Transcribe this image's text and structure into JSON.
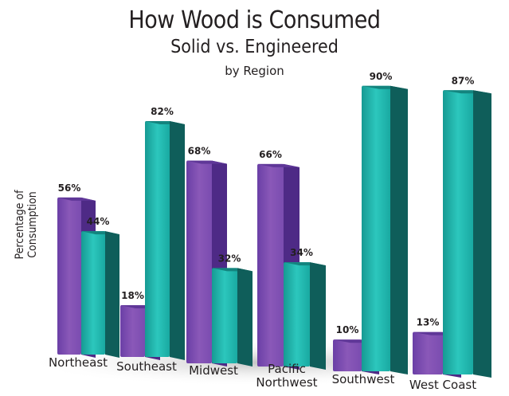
{
  "chart_data": {
    "type": "bar",
    "title": "How Wood is Consumed",
    "subtitle": "Solid vs. Engineered",
    "subtitle2": "by Region",
    "xlabel": "",
    "ylabel": "Percentage of Consumption",
    "ylim": [
      0,
      100
    ],
    "grid": false,
    "categories": [
      "Northeast",
      "Southeast",
      "Midwest",
      "Pacific Northwest",
      "Southwest",
      "West Coast"
    ],
    "series": [
      {
        "values": [
          56,
          18,
          68,
          66,
          10,
          13
        ],
        "color": "#7b4fb0"
      },
      {
        "values": [
          44,
          82,
          32,
          34,
          90,
          87
        ],
        "color": "#1fb5ad"
      }
    ],
    "value_format": "{v}%"
  }
}
